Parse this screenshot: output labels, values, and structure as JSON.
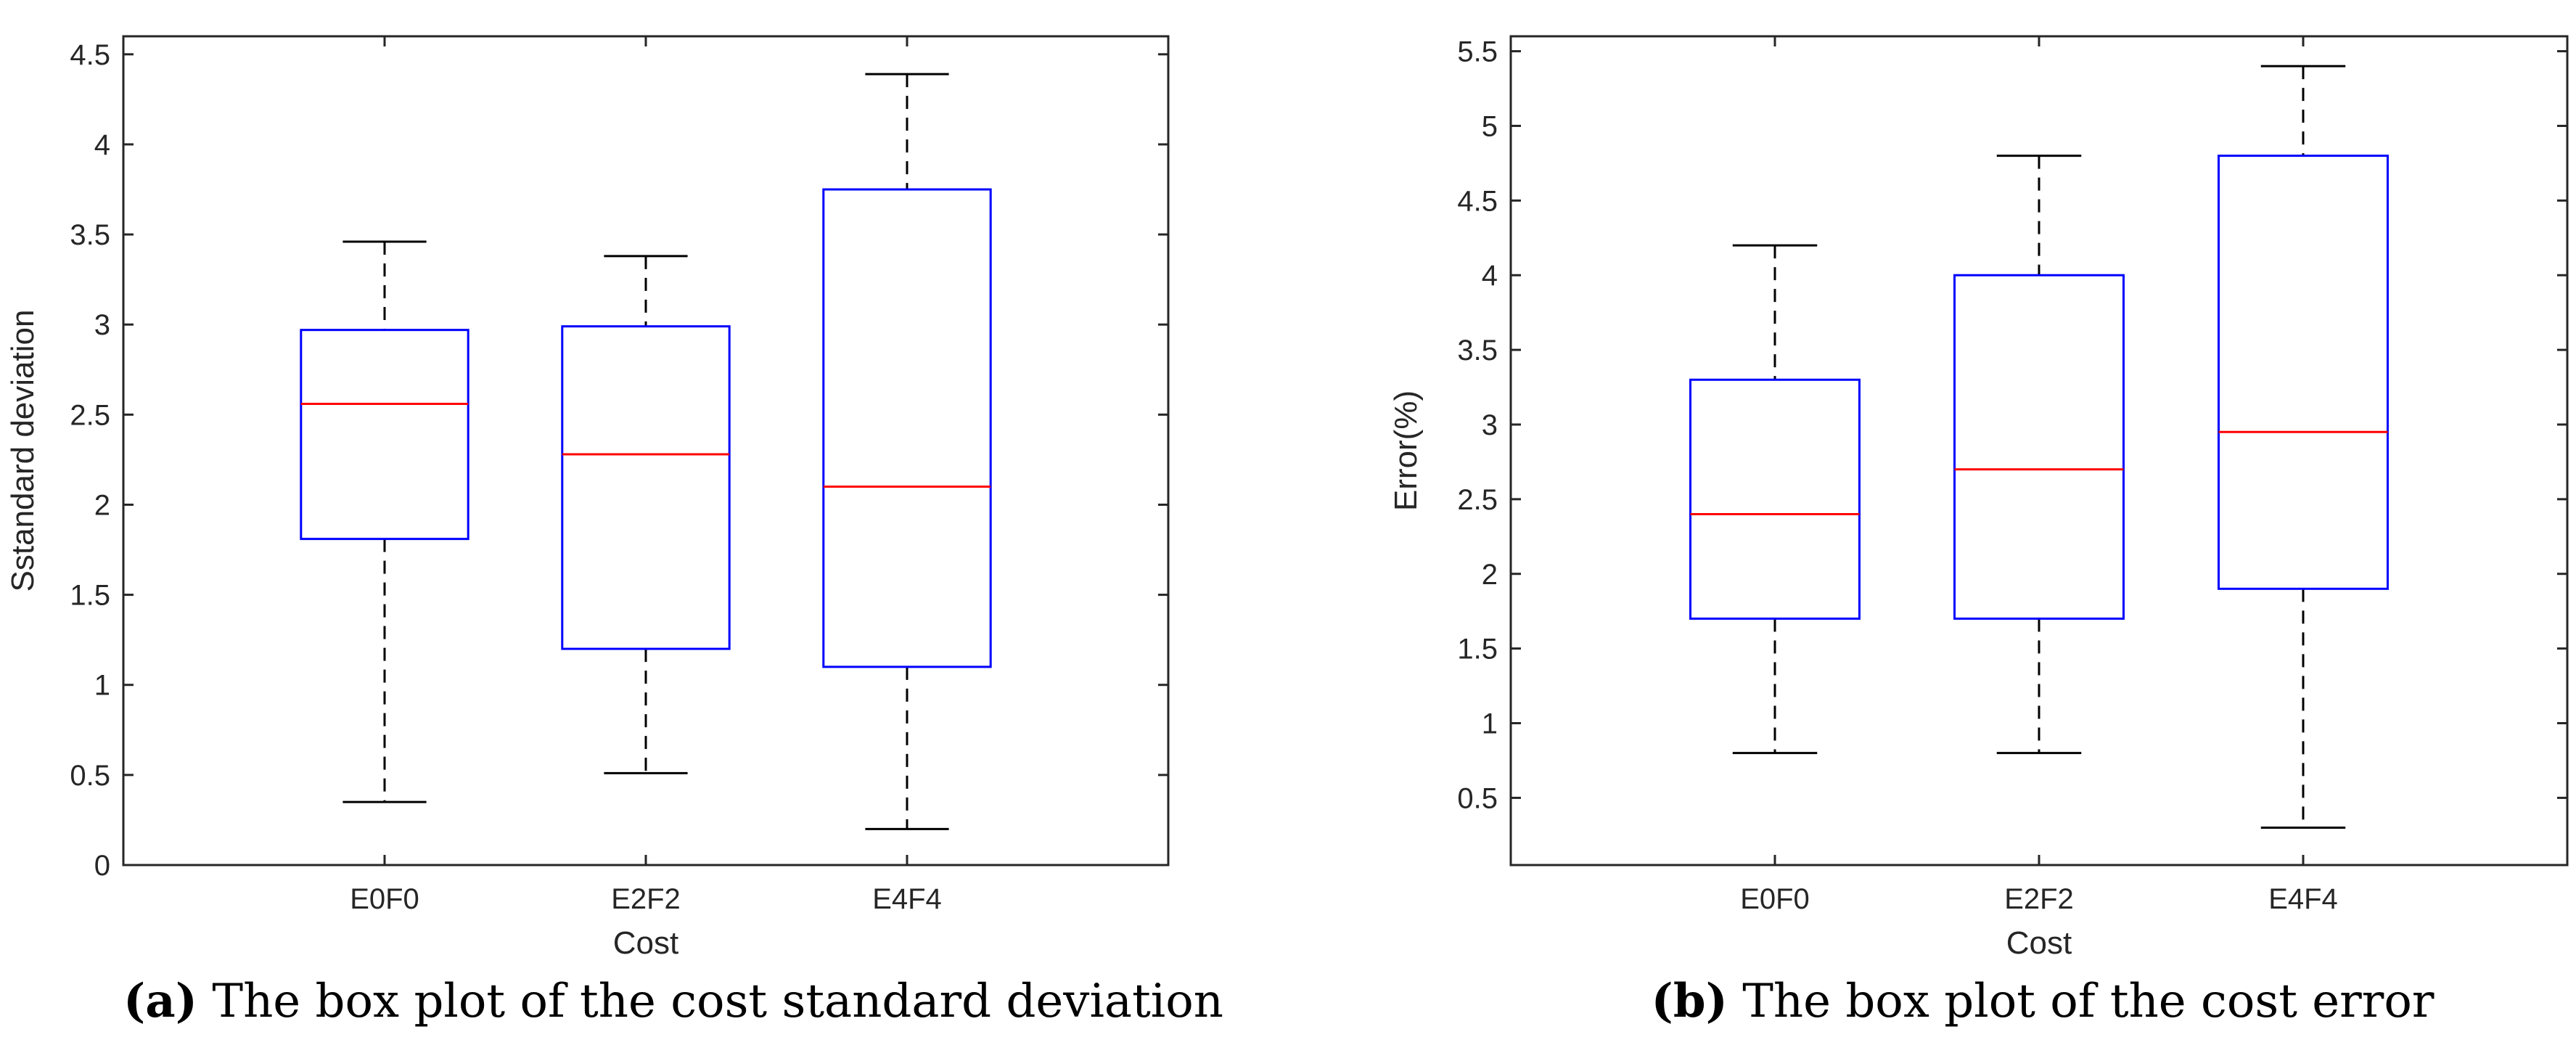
{
  "chart_data": [
    {
      "type": "box",
      "panel_label": "a",
      "caption": "The box plot of the cost standard deviation",
      "xlabel": "Cost",
      "ylabel": "Sstandard deviation",
      "ylim": [
        0,
        4.6
      ],
      "yticks": [
        0,
        0.5,
        1,
        1.5,
        2,
        2.5,
        3,
        3.5,
        4,
        4.5
      ],
      "ytick_labels": [
        "0",
        "0.5",
        "1",
        "1.5",
        "2",
        "2.5",
        "3",
        "3.5",
        "4",
        "4.5"
      ],
      "categories": [
        "E0F0",
        "E2F2",
        "E4F4"
      ],
      "boxes": [
        {
          "category": "E0F0",
          "whisker_low": 0.35,
          "q1": 1.81,
          "median": 2.56,
          "q3": 2.97,
          "whisker_high": 3.46
        },
        {
          "category": "E2F2",
          "whisker_low": 0.51,
          "q1": 1.2,
          "median": 2.28,
          "q3": 2.99,
          "whisker_high": 3.38
        },
        {
          "category": "E4F4",
          "whisker_low": 0.2,
          "q1": 1.1,
          "median": 2.1,
          "q3": 3.75,
          "whisker_high": 4.39
        }
      ],
      "colors": {
        "box": "#0000ff",
        "median": "#ff0000",
        "whisker": "#000000",
        "axis": "#262626"
      }
    },
    {
      "type": "box",
      "panel_label": "b",
      "caption": "The box plot of the cost error",
      "xlabel": "Cost",
      "ylabel": "Error(%)",
      "ylim": [
        0.05,
        5.6
      ],
      "yticks": [
        0.5,
        1,
        1.5,
        2,
        2.5,
        3,
        3.5,
        4,
        4.5,
        5,
        5.5
      ],
      "ytick_labels": [
        "0.5",
        "1",
        "1.5",
        "2",
        "2.5",
        "3",
        "3.5",
        "4",
        "4.5",
        "5",
        "5.5"
      ],
      "categories": [
        "E0F0",
        "E2F2",
        "E4F4"
      ],
      "boxes": [
        {
          "category": "E0F0",
          "whisker_low": 0.8,
          "q1": 1.7,
          "median": 2.4,
          "q3": 3.3,
          "whisker_high": 4.2
        },
        {
          "category": "E2F2",
          "whisker_low": 0.8,
          "q1": 1.7,
          "median": 2.7,
          "q3": 4.0,
          "whisker_high": 4.8
        },
        {
          "category": "E4F4",
          "whisker_low": 0.3,
          "q1": 1.9,
          "median": 2.95,
          "q3": 4.8,
          "whisker_high": 5.4
        }
      ],
      "colors": {
        "box": "#0000ff",
        "median": "#ff0000",
        "whisker": "#000000",
        "axis": "#262626"
      }
    }
  ]
}
